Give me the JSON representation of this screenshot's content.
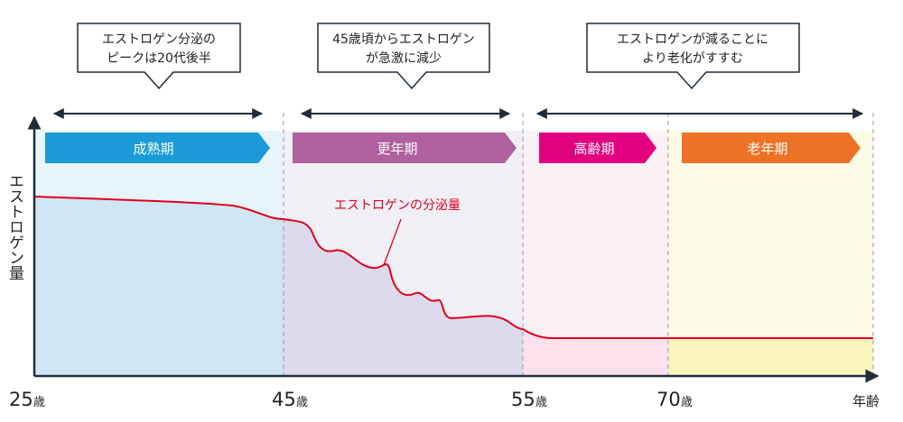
{
  "callouts": [
    {
      "line1": "エストロゲン分泌の",
      "line2": "ピークは20代後半"
    },
    {
      "line1": "45歳頃からエストロゲン",
      "line2": "が急激に減少"
    },
    {
      "line1": "エストロゲンが減ることに",
      "line2": "より老化がすすむ"
    }
  ],
  "stages": [
    {
      "label": "成熟期",
      "color": "#1a9bd7"
    },
    {
      "label": "更年期",
      "color": "#b0609e"
    },
    {
      "label": "高齢期",
      "color": "#e3007f"
    },
    {
      "label": "老年期",
      "color": "#ec7326"
    }
  ],
  "y_axis_label": "エストロゲン量",
  "curve_label": "エストロゲンの分泌量",
  "curve_color": "#e0001b",
  "x_axis": {
    "ticks": [
      {
        "age": "25",
        "unit": "歳"
      },
      {
        "age": "45",
        "unit": "歳"
      },
      {
        "age": "55",
        "unit": "歳"
      },
      {
        "age": "70",
        "unit": "歳"
      }
    ],
    "end_label": "年齢"
  }
}
